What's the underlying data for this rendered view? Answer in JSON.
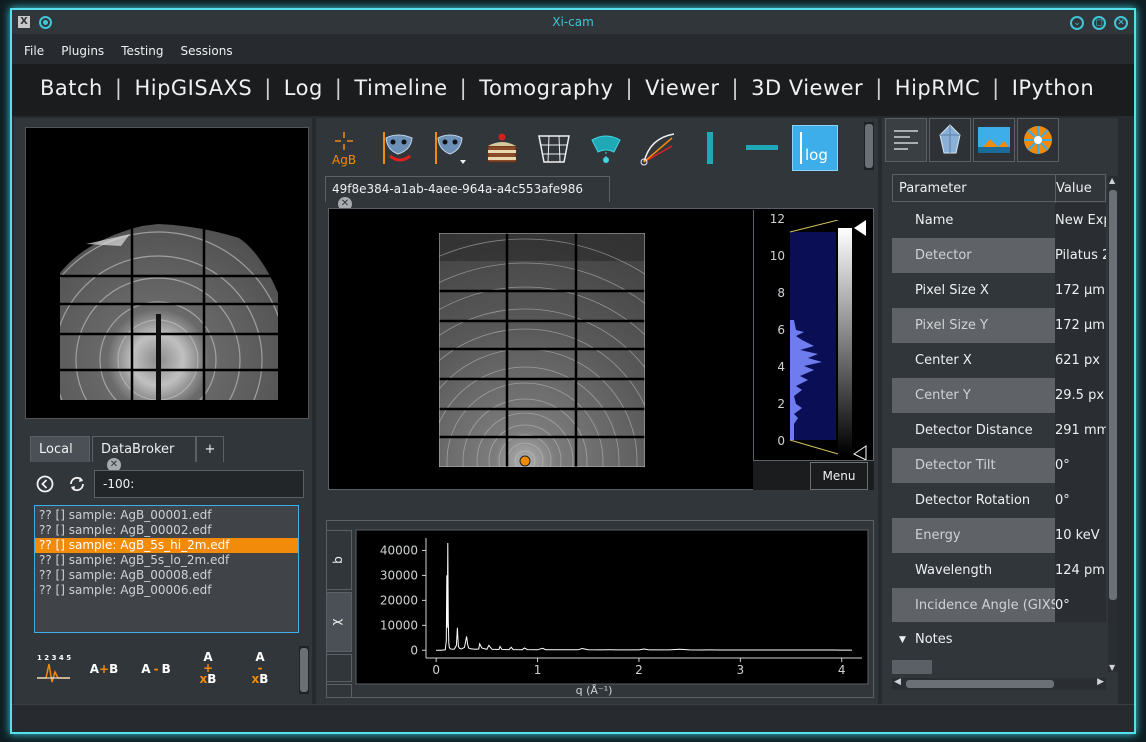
{
  "window": {
    "title": "Xi-cam",
    "buttons": [
      "minimize",
      "maximize",
      "close"
    ]
  },
  "menu": [
    "File",
    "Plugins",
    "Testing",
    "Sessions"
  ],
  "plugins": [
    "Batch",
    "HipGISAXS",
    "Log",
    "Timeline",
    "Tomography",
    "Viewer",
    "3D Viewer",
    "HipRMC",
    "IPython"
  ],
  "plugin_separator": "|",
  "left": {
    "tabs": [
      {
        "label": "Local"
      },
      {
        "label": "DataBroker"
      },
      {
        "label": "+"
      }
    ],
    "path_value": "-100:",
    "files": [
      "?? [] sample: AgB_00001.edf",
      "?? [] sample: AgB_00002.edf",
      "?? [] sample: AgB_5s_hi_2m.edf",
      "?? [] sample: AgB_5s_lo_2m.edf",
      "?? [] sample: AgB_00008.edf",
      "?? [] sample: AgB_00006.edf"
    ],
    "selected_file_index": 2,
    "ops": [
      {
        "name": "spectra",
        "label": "1 2 3 4 5"
      },
      {
        "name": "add",
        "a": "A",
        "op": "+",
        "b": "B"
      },
      {
        "name": "subtract",
        "a": "A",
        "op": "-",
        "b": "B"
      },
      {
        "name": "add-scaled",
        "a": "A",
        "op": "+",
        "b": "xB"
      },
      {
        "name": "subtract-scaled",
        "a": "A",
        "op": "-",
        "b": "xB"
      }
    ]
  },
  "toolbar": {
    "agb_label": "AgB",
    "log_label": "log"
  },
  "image_tab": {
    "label": "49f8e384-a1ab-4aee-964a-a4c553afe986"
  },
  "histogram": {
    "ticks": [
      "12",
      "10",
      "8",
      "6",
      "4",
      "2",
      "0"
    ],
    "menu_label": "Menu"
  },
  "plot_tabs": [
    "q",
    "χ"
  ],
  "chart_data": {
    "type": "line",
    "xlabel": "q (Å⁻¹)",
    "ylabel": "",
    "xlim": [
      -0.1,
      4.2
    ],
    "ylim": [
      -1500,
      45000
    ],
    "xticks": [
      "0",
      "1",
      "2",
      "3",
      "4"
    ],
    "yticks": [
      "0",
      "10000",
      "20000",
      "30000",
      "40000"
    ],
    "grid": false,
    "series": [
      {
        "color": "#ffffff",
        "x": [
          0.0,
          0.05,
          0.09,
          0.1,
          0.105,
          0.11,
          0.115,
          0.12,
          0.125,
          0.13,
          0.14,
          0.16,
          0.18,
          0.2,
          0.21,
          0.215,
          0.22,
          0.23,
          0.25,
          0.28,
          0.3,
          0.31,
          0.32,
          0.34,
          0.38,
          0.42,
          0.43,
          0.45,
          0.5,
          0.52,
          0.55,
          0.62,
          0.63,
          0.65,
          0.72,
          0.74,
          0.76,
          0.85,
          0.87,
          0.9,
          1.0,
          1.05,
          1.08,
          1.2,
          1.3,
          1.4,
          1.44,
          1.5,
          1.6,
          1.7,
          1.8,
          1.9,
          2.0,
          2.05,
          2.1,
          2.2,
          2.3,
          2.4,
          2.5,
          2.6,
          2.7,
          2.8,
          2.9,
          3.0,
          3.1,
          3.2,
          3.3,
          3.4,
          3.5,
          3.6,
          3.7,
          3.8,
          3.9,
          4.0,
          4.1
        ],
        "values": [
          0,
          0,
          200,
          4000,
          30000,
          9000,
          43000,
          12000,
          3000,
          1200,
          600,
          400,
          500,
          2000,
          9000,
          5000,
          1500,
          800,
          500,
          1200,
          5500,
          2500,
          900,
          600,
          400,
          500,
          2600,
          900,
          350,
          2000,
          400,
          300,
          1500,
          300,
          250,
          1200,
          280,
          220,
          900,
          250,
          200,
          800,
          220,
          180,
          200,
          170,
          700,
          180,
          160,
          170,
          150,
          160,
          140,
          500,
          150,
          140,
          130,
          400,
          130,
          120,
          130,
          120,
          110,
          120,
          110,
          100,
          110,
          100,
          100,
          90,
          100,
          90,
          90,
          80,
          80
        ]
      }
    ]
  },
  "parameters": {
    "header": {
      "param": "Parameter",
      "value": "Value"
    },
    "rows": [
      {
        "name": "Name",
        "value": "New Exp"
      },
      {
        "name": "Detector",
        "value": "Pilatus 2"
      },
      {
        "name": "Pixel Size X",
        "value": "172 μm"
      },
      {
        "name": "Pixel Size Y",
        "value": "172 μm"
      },
      {
        "name": "Center X",
        "value": "621 px"
      },
      {
        "name": "Center Y",
        "value": "29.5 px"
      },
      {
        "name": "Detector Distance",
        "value": "291 mm"
      },
      {
        "name": "Detector Tilt",
        "value": "0°"
      },
      {
        "name": "Detector Rotation",
        "value": "0°"
      },
      {
        "name": "Energy",
        "value": "10 keV"
      },
      {
        "name": "Wavelength",
        "value": "124 pm"
      },
      {
        "name": "Incidence Angle (GIXS)",
        "value": "0°"
      }
    ],
    "notes_label": "Notes"
  }
}
